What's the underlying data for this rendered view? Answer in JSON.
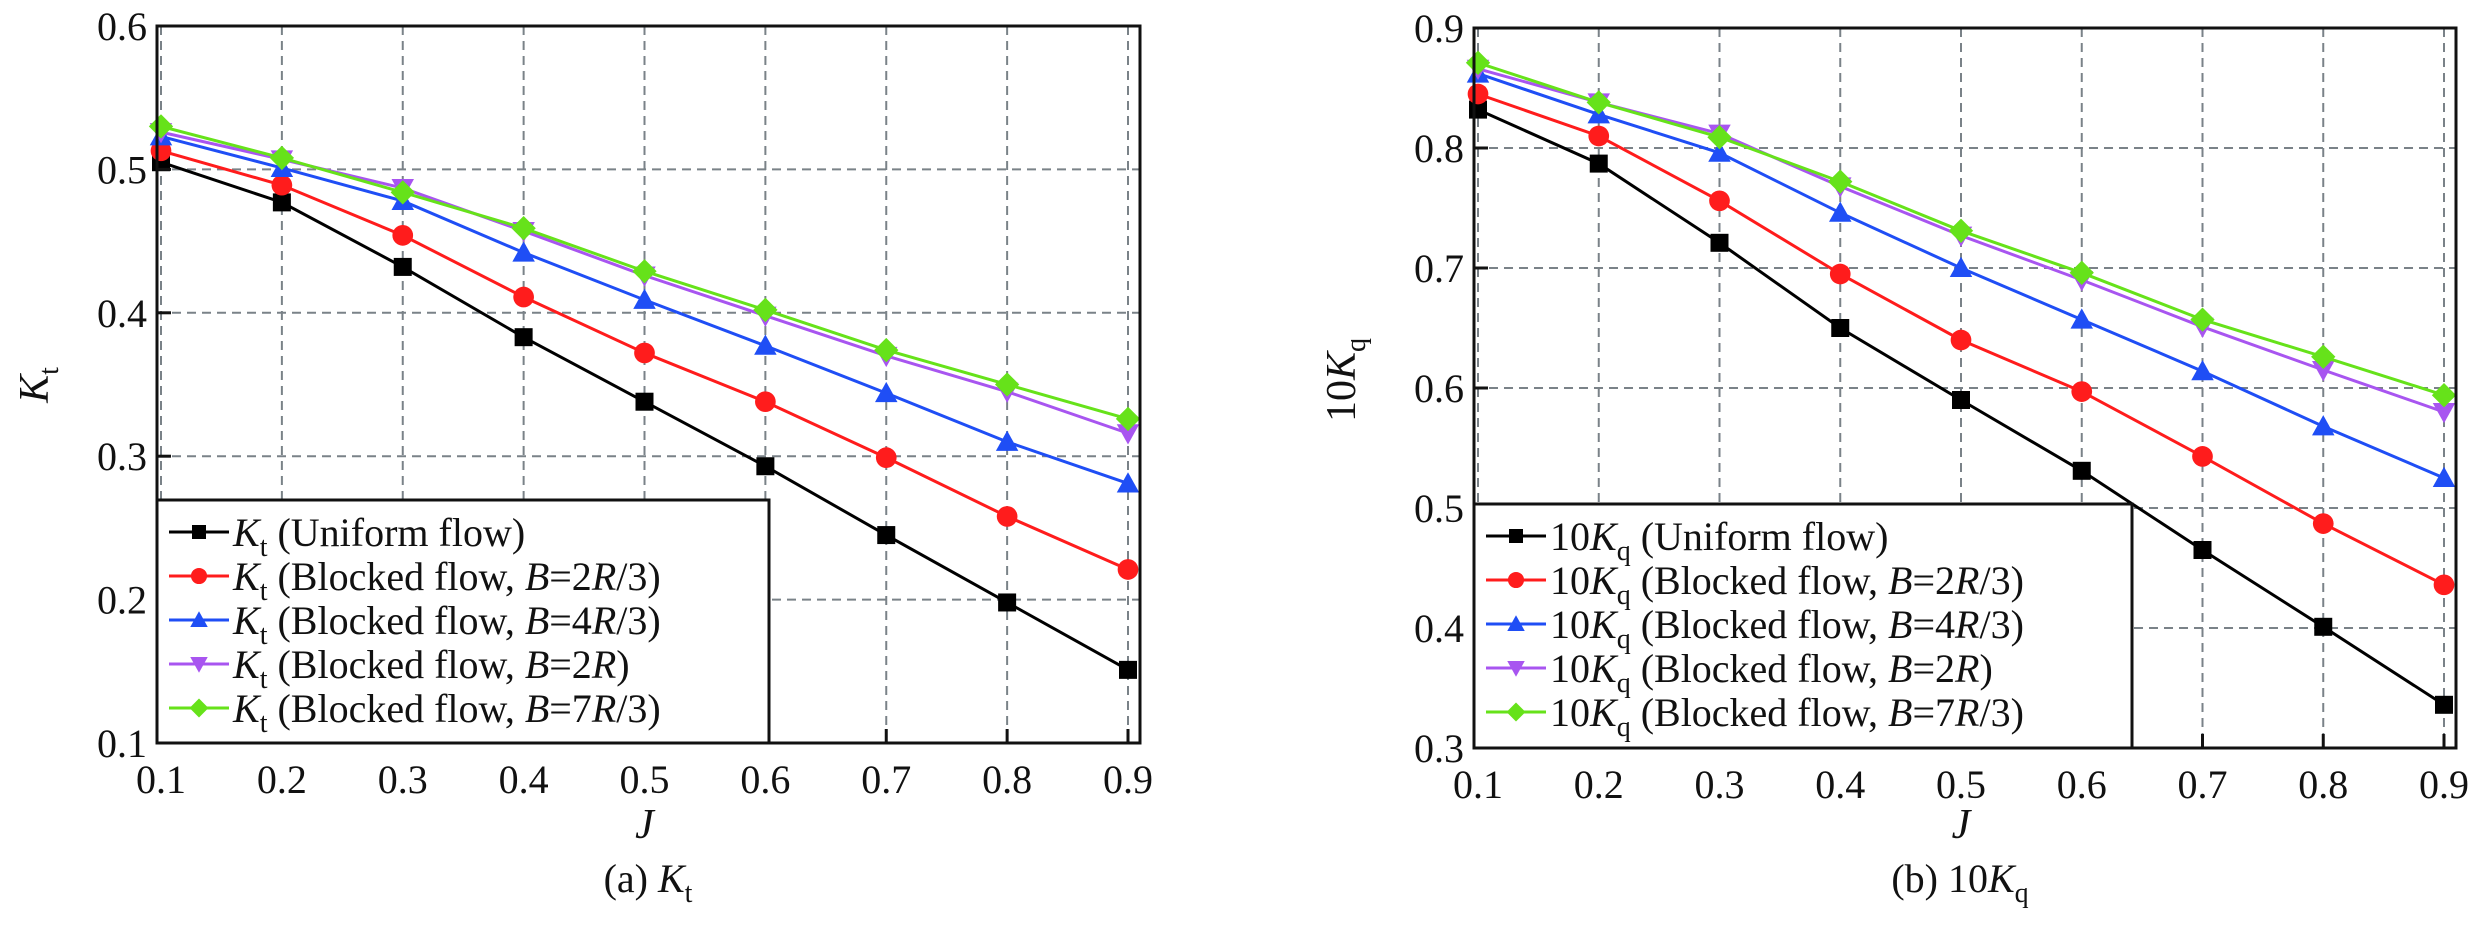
{
  "chart_data": [
    {
      "type": "line",
      "title": "(a) Kt",
      "caption": {
        "prefix": "(a) ",
        "sym": "K",
        "sub": "t"
      },
      "xlabel": "J",
      "ylabel": {
        "sym": "K",
        "sub": "t"
      },
      "x": [
        0.1,
        0.2,
        0.3,
        0.4,
        0.5,
        0.6,
        0.7,
        0.8,
        0.9
      ],
      "xlim": [
        0.1,
        0.9
      ],
      "ylim": [
        0.1,
        0.6
      ],
      "xticks": [
        "0.1",
        "0.2",
        "0.3",
        "0.4",
        "0.5",
        "0.6",
        "0.7",
        "0.8",
        "0.9"
      ],
      "yticks": [
        "0.1",
        "0.2",
        "0.3",
        "0.4",
        "0.5",
        "0.6"
      ],
      "grid": true,
      "legend_position": "bottom-left",
      "series": [
        {
          "name": "Kt (Uniform flow)",
          "prefix": "",
          "sym": "K",
          "sub": "t",
          "desc": " (Uniform flow)",
          "marker": "square",
          "color": "#000000",
          "values": [
            0.505,
            0.477,
            0.432,
            0.383,
            0.338,
            0.293,
            0.245,
            0.198,
            0.151
          ]
        },
        {
          "name": "Kt (Blocked flow, B=2R/3)",
          "prefix": "",
          "sym": "K",
          "sub": "t",
          "desc": " (Blocked flow, ",
          "b": "B",
          "eq": "=2",
          "r": "R",
          "tail": "/3)",
          "marker": "circle",
          "color": "#ff1c1c",
          "values": [
            0.513,
            0.489,
            0.454,
            0.411,
            0.372,
            0.338,
            0.299,
            0.258,
            0.221
          ]
        },
        {
          "name": "Kt (Blocked flow, B=4R/3)",
          "prefix": "",
          "sym": "K",
          "sub": "t",
          "desc": " (Blocked flow, ",
          "b": "B",
          "eq": "=4",
          "r": "R",
          "tail": "/3)",
          "marker": "triangle-up",
          "color": "#1f4ef5",
          "values": [
            0.523,
            0.501,
            0.478,
            0.442,
            0.409,
            0.377,
            0.344,
            0.31,
            0.281
          ]
        },
        {
          "name": "Kt (Blocked flow, B=2R)",
          "prefix": "",
          "sym": "K",
          "sub": "t",
          "desc": " (Blocked flow, ",
          "b": "B",
          "eq": "=2",
          "r": "R",
          "tail": ")",
          "marker": "triangle-down",
          "color": "#a855f0",
          "values": [
            0.526,
            0.507,
            0.487,
            0.457,
            0.426,
            0.398,
            0.37,
            0.345,
            0.316
          ]
        },
        {
          "name": "Kt (Blocked flow, B=7R/3)",
          "prefix": "",
          "sym": "K",
          "sub": "t",
          "desc": " (Blocked flow, ",
          "b": "B",
          "eq": "=7",
          "r": "R",
          "tail": "/3)",
          "marker": "diamond",
          "color": "#66e21a",
          "values": [
            0.53,
            0.508,
            0.484,
            0.459,
            0.429,
            0.402,
            0.374,
            0.35,
            0.326
          ]
        }
      ]
    },
    {
      "type": "line",
      "title": "(b) 10Kq",
      "caption": {
        "prefix": "(b) 10",
        "sym": "K",
        "sub": "q"
      },
      "xlabel": "J",
      "ylabel": {
        "prefix": "10",
        "sym": "K",
        "sub": "q"
      },
      "x": [
        0.1,
        0.2,
        0.3,
        0.4,
        0.5,
        0.6,
        0.7,
        0.8,
        0.9
      ],
      "xlim": [
        0.1,
        0.9
      ],
      "ylim": [
        0.3,
        0.9
      ],
      "xticks": [
        "0.1",
        "0.2",
        "0.3",
        "0.4",
        "0.5",
        "0.6",
        "0.7",
        "0.8",
        "0.9"
      ],
      "yticks": [
        "0.3",
        "0.4",
        "0.5",
        "0.6",
        "0.7",
        "0.8",
        "0.9"
      ],
      "grid": true,
      "legend_position": "bottom-left",
      "series": [
        {
          "name": "10Kq (Uniform flow)",
          "prefix": "10",
          "sym": "K",
          "sub": "q",
          "desc": " (Uniform flow)",
          "marker": "square",
          "color": "#000000",
          "values": [
            0.832,
            0.787,
            0.721,
            0.65,
            0.59,
            0.531,
            0.465,
            0.401,
            0.336
          ]
        },
        {
          "name": "10Kq (Blocked flow, B=2R/3)",
          "prefix": "10",
          "sym": "K",
          "sub": "q",
          "desc": " (Blocked flow, ",
          "b": "B",
          "eq": "=2",
          "r": "R",
          "tail": "/3)",
          "marker": "circle",
          "color": "#ff1c1c",
          "values": [
            0.845,
            0.81,
            0.756,
            0.695,
            0.64,
            0.597,
            0.543,
            0.487,
            0.436
          ]
        },
        {
          "name": "10Kq (Blocked flow, B=4R/3)",
          "prefix": "10",
          "sym": "K",
          "sub": "q",
          "desc": " (Blocked flow, ",
          "b": "B",
          "eq": "=4",
          "r": "R",
          "tail": "/3)",
          "marker": "triangle-up",
          "color": "#1f4ef5",
          "values": [
            0.862,
            0.828,
            0.796,
            0.746,
            0.7,
            0.657,
            0.614,
            0.568,
            0.525
          ]
        },
        {
          "name": "10Kq (Blocked flow, B=2R)",
          "prefix": "10",
          "sym": "K",
          "sub": "q",
          "desc": " (Blocked flow, ",
          "b": "B",
          "eq": "=2",
          "r": "R",
          "tail": ")",
          "marker": "triangle-down",
          "color": "#a855f0",
          "values": [
            0.866,
            0.838,
            0.812,
            0.768,
            0.727,
            0.69,
            0.651,
            0.615,
            0.58
          ]
        },
        {
          "name": "10Kq (Blocked flow, B=7R/3)",
          "prefix": "10",
          "sym": "K",
          "sub": "q",
          "desc": " (Blocked flow, ",
          "b": "B",
          "eq": "=7",
          "r": "R",
          "tail": "/3)",
          "marker": "diamond",
          "color": "#66e21a",
          "values": [
            0.871,
            0.838,
            0.809,
            0.772,
            0.731,
            0.696,
            0.657,
            0.626,
            0.594
          ]
        }
      ]
    }
  ]
}
